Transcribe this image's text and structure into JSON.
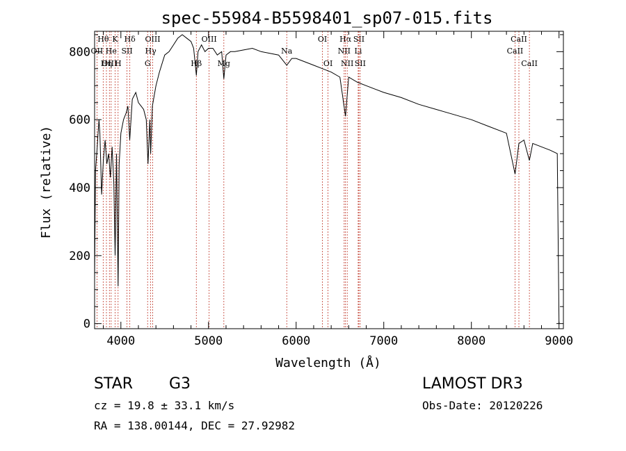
{
  "chart_data": {
    "type": "line",
    "title": "spec-55984-B5598401_sp07-015.fits",
    "xlabel": "Wavelength (Å)",
    "ylabel": "Flux (relative)",
    "xlim": [
      3700,
      9050
    ],
    "ylim": [
      -15,
      860
    ],
    "x_ticks": [
      4000,
      5000,
      6000,
      7000,
      8000,
      9000
    ],
    "y_ticks": [
      0,
      200,
      400,
      600,
      800
    ],
    "series": [
      {
        "name": "flux",
        "x": [
          3700,
          3710,
          3730,
          3750,
          3760,
          3780,
          3800,
          3820,
          3840,
          3860,
          3880,
          3900,
          3920,
          3934,
          3950,
          3968,
          3980,
          4000,
          4030,
          4060,
          4080,
          4101,
          4130,
          4170,
          4200,
          4230,
          4260,
          4290,
          4310,
          4330,
          4340,
          4360,
          4400,
          4440,
          4500,
          4550,
          4600,
          4650,
          4700,
          4750,
          4800,
          4830,
          4861,
          4880,
          4920,
          4960,
          5000,
          5050,
          5100,
          5150,
          5175,
          5200,
          5250,
          5300,
          5400,
          5500,
          5600,
          5700,
          5800,
          5893,
          5950,
          6000,
          6100,
          6200,
          6300,
          6400,
          6500,
          6563,
          6600,
          6700,
          6800,
          6900,
          7000,
          7200,
          7400,
          7600,
          7800,
          8000,
          8200,
          8400,
          8498,
          8542,
          8600,
          8662,
          8700,
          8800,
          8900,
          8980,
          9000
        ],
        "values": [
          130,
          450,
          520,
          600,
          560,
          380,
          480,
          540,
          470,
          500,
          430,
          520,
          410,
          200,
          500,
          110,
          470,
          560,
          600,
          620,
          640,
          540,
          660,
          680,
          650,
          640,
          630,
          600,
          470,
          600,
          500,
          640,
          700,
          740,
          790,
          800,
          820,
          840,
          850,
          840,
          830,
          810,
          730,
          800,
          820,
          800,
          810,
          810,
          790,
          800,
          720,
          790,
          800,
          800,
          805,
          810,
          800,
          795,
          790,
          760,
          780,
          780,
          770,
          760,
          750,
          740,
          725,
          610,
          725,
          710,
          700,
          690,
          680,
          665,
          645,
          630,
          615,
          600,
          580,
          560,
          440,
          530,
          540,
          480,
          530,
          520,
          510,
          500,
          0
        ]
      }
    ],
    "lines": [
      {
        "name": "Hθ",
        "x": 3798,
        "row": 0
      },
      {
        "name": "OII",
        "x": 3727,
        "row": 1
      },
      {
        "name": "OIII",
        "x": 3869,
        "row": 2
      },
      {
        "name": "K",
        "x": 3934,
        "row": 0
      },
      {
        "name": "He",
        "x": 3889,
        "row": 1
      },
      {
        "name": "Hη",
        "x": 3835,
        "row": 2
      },
      {
        "name": "Hδ",
        "x": 4102,
        "row": 0
      },
      {
        "name": "SII",
        "x": 4070,
        "row": 1
      },
      {
        "name": "H",
        "x": 3968,
        "row": 2
      },
      {
        "name": "OIII",
        "x": 4363,
        "row": 0
      },
      {
        "name": "Hγ",
        "x": 4340,
        "row": 1
      },
      {
        "name": "G",
        "x": 4305,
        "row": 2
      },
      {
        "name": "OIII",
        "x": 5007,
        "row": 0
      },
      {
        "name": "Hβ",
        "x": 4861,
        "row": 2
      },
      {
        "name": "Mg",
        "x": 5175,
        "row": 2
      },
      {
        "name": "Na",
        "x": 5893,
        "row": 1
      },
      {
        "name": "OI",
        "x": 6300,
        "row": 0
      },
      {
        "name": "OI",
        "x": 6364,
        "row": 2
      },
      {
        "name": "Hα",
        "x": 6563,
        "row": 0
      },
      {
        "name": "SII",
        "x": 6716,
        "row": 0
      },
      {
        "name": "NII",
        "x": 6548,
        "row": 1
      },
      {
        "name": "Li",
        "x": 6708,
        "row": 1
      },
      {
        "name": "NII",
        "x": 6583,
        "row": 2
      },
      {
        "name": "SII",
        "x": 6731,
        "row": 2
      },
      {
        "name": "CaII",
        "x": 8542,
        "row": 0
      },
      {
        "name": "CaII",
        "x": 8498,
        "row": 1
      },
      {
        "name": "CaII",
        "x": 8662,
        "row": 2
      }
    ]
  },
  "info": {
    "class_label": "STAR",
    "subclass": "G3",
    "survey": "LAMOST DR3",
    "cz": "cz = 19.8 ± 33.1 km/s",
    "obs_date": "Obs-Date: 20120226",
    "radec": "RA = 138.00144, DEC =  27.92982"
  },
  "colors": {
    "axis": "#000000",
    "line_marker": "#c0392b",
    "spectrum": "#000000"
  }
}
